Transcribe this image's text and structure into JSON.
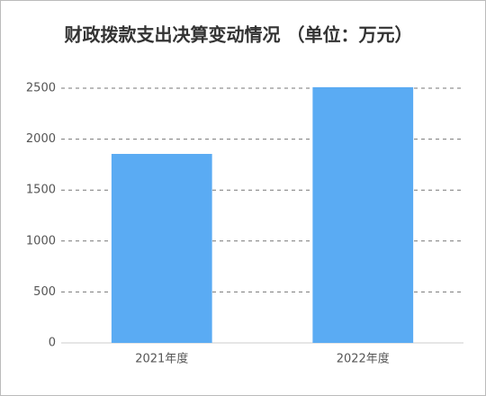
{
  "chart_data": {
    "type": "bar",
    "title": "财政拨款支出决算变动情况 （单位：万元）",
    "categories": [
      "2021年度",
      "2022年度"
    ],
    "values": [
      1855,
      2510
    ],
    "color": "#5aabf3",
    "ylim": [
      0,
      2500
    ],
    "yticks": [
      0,
      500,
      1000,
      1500,
      2000,
      2500
    ],
    "grid": true
  }
}
